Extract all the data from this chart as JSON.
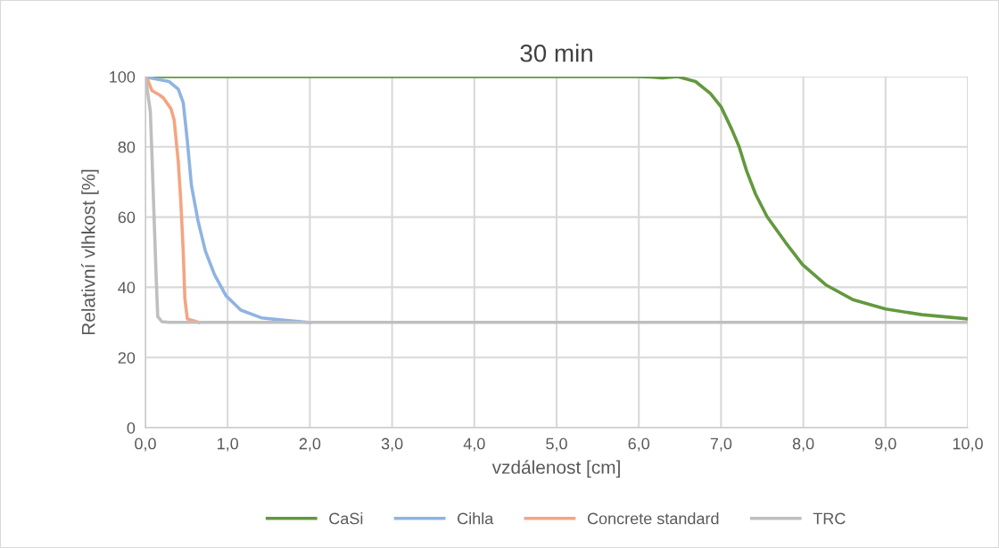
{
  "chart_data": {
    "type": "line",
    "title": "30 min",
    "xlabel": "vzdálenost [cm]",
    "ylabel": "Relativní vlhkost [%]",
    "xlim": [
      0,
      10
    ],
    "ylim": [
      0,
      100
    ],
    "xticks": [
      {
        "value": 0,
        "label": "0,0"
      },
      {
        "value": 1,
        "label": "1,0"
      },
      {
        "value": 2,
        "label": "2,0"
      },
      {
        "value": 3,
        "label": "3,0"
      },
      {
        "value": 4,
        "label": "4,0"
      },
      {
        "value": 5,
        "label": "5,0"
      },
      {
        "value": 6,
        "label": "6,0"
      },
      {
        "value": 7,
        "label": "7,0"
      },
      {
        "value": 8,
        "label": "8,0"
      },
      {
        "value": 9,
        "label": "9,0"
      },
      {
        "value": 10,
        "label": "10,0"
      }
    ],
    "yticks": [
      0,
      20,
      40,
      60,
      80,
      100
    ],
    "grid": true,
    "legend": "bottom",
    "marker": "none",
    "line_style": "solid",
    "series": [
      {
        "name": "CaSi",
        "color": "#62993e",
        "x": [
          0,
          1,
          2,
          3,
          4,
          5,
          6,
          6.15,
          6.29,
          6.47,
          6.69,
          6.87,
          7.0,
          7.13,
          7.22,
          7.31,
          7.42,
          7.56,
          7.78,
          7.99,
          8.28,
          8.61,
          9.0,
          9.44,
          10.0
        ],
        "values": [
          100,
          100,
          100,
          100,
          100,
          100,
          100,
          99.9,
          99.6,
          100,
          98.6,
          95.2,
          91.4,
          85,
          80,
          73.2,
          66.5,
          60.1,
          52.9,
          46.5,
          40.6,
          36.4,
          33.8,
          32.2,
          31
        ]
      },
      {
        "name": "Cihla",
        "color": "#8fb4e3",
        "x": [
          0,
          0.02,
          0.29,
          0.4,
          0.46,
          0.51,
          0.56,
          0.64,
          0.73,
          0.84,
          0.98,
          1.16,
          1.41,
          1.74,
          2.0
        ],
        "values": [
          100,
          99.8,
          98.6,
          96.4,
          92.6,
          81.7,
          69,
          58.9,
          50.3,
          43.6,
          37.6,
          33.5,
          31.3,
          30.5,
          30
        ]
      },
      {
        "name": "Concrete standard",
        "color": "#f4a582",
        "x": [
          0,
          0.02,
          0.08,
          0.17,
          0.22,
          0.31,
          0.35,
          0.4,
          0.43,
          0.46,
          0.48,
          0.51,
          0.65
        ],
        "values": [
          100,
          99.5,
          96,
          94.8,
          93.9,
          90.9,
          87.6,
          75.7,
          64.7,
          50.3,
          36.8,
          31,
          30
        ]
      },
      {
        "name": "TRC",
        "color": "#bfbfbf",
        "x": [
          0,
          0.06,
          0.08,
          0.105,
          0.13,
          0.15,
          0.2,
          0.29,
          10.0
        ],
        "values": [
          100,
          90.1,
          77.4,
          60.5,
          43.6,
          31.7,
          30.2,
          30,
          30
        ]
      }
    ]
  }
}
